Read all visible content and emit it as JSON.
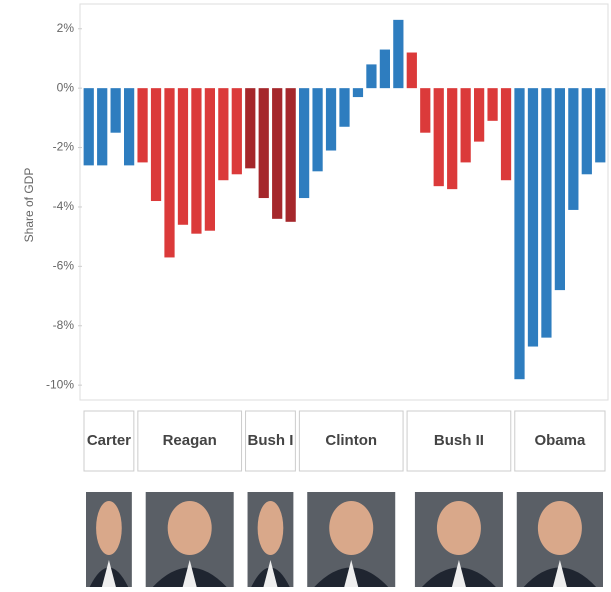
{
  "chart_data": {
    "type": "bar",
    "y_label": "Share of GDP",
    "categories": [
      null,
      null,
      null,
      null,
      null,
      null,
      null,
      null,
      null,
      null,
      null,
      null,
      null,
      null,
      null,
      null,
      null,
      null,
      null,
      null,
      null,
      null,
      null,
      null,
      null,
      null,
      null,
      null,
      null,
      null,
      null,
      null,
      null,
      null,
      null,
      null,
      null,
      null,
      null
    ],
    "series": [
      {
        "name": "Carter",
        "color": "#2e7dbf",
        "values": [
          -2.6,
          -2.6,
          -1.5,
          -2.6,
          null,
          null,
          null,
          null,
          null,
          null,
          null,
          null,
          null,
          null,
          null,
          null,
          null,
          null,
          null,
          null,
          null,
          null,
          null,
          null,
          null,
          null,
          null,
          null,
          null,
          null,
          null,
          null,
          null,
          null,
          null,
          null,
          null,
          null,
          null
        ]
      },
      {
        "name": "Reagan",
        "color": "#db3a3a",
        "values": [
          null,
          null,
          null,
          null,
          -2.5,
          -3.8,
          -5.7,
          -4.6,
          -4.9,
          -4.8,
          -3.1,
          -2.9,
          null,
          null,
          null,
          null,
          null,
          null,
          null,
          null,
          null,
          null,
          null,
          null,
          null,
          null,
          null,
          null,
          null,
          null,
          null,
          null,
          null,
          null,
          null,
          null,
          null,
          null,
          null
        ]
      },
      {
        "name": "Bush I",
        "color": "#a5272b",
        "values": [
          null,
          null,
          null,
          null,
          null,
          null,
          null,
          null,
          null,
          null,
          null,
          null,
          -2.7,
          -3.7,
          -4.4,
          -4.5,
          null,
          null,
          null,
          null,
          null,
          null,
          null,
          null,
          null,
          null,
          null,
          null,
          null,
          null,
          null,
          null,
          null,
          null,
          null,
          null,
          null,
          null,
          null
        ]
      },
      {
        "name": "Clinton",
        "color": "#2e7dbf",
        "values": [
          null,
          null,
          null,
          null,
          null,
          null,
          null,
          null,
          null,
          null,
          null,
          null,
          null,
          null,
          null,
          null,
          -3.7,
          -2.8,
          -2.1,
          -1.3,
          -0.3,
          0.8,
          1.3,
          2.3,
          null,
          null,
          null,
          null,
          null,
          null,
          null,
          null,
          null,
          null,
          null,
          null,
          null,
          null,
          null
        ]
      },
      {
        "name": "Bush II",
        "color": "#db3a3a",
        "values": [
          null,
          null,
          null,
          null,
          null,
          null,
          null,
          null,
          null,
          null,
          null,
          null,
          null,
          null,
          null,
          null,
          null,
          null,
          null,
          null,
          null,
          null,
          null,
          null,
          1.2,
          -1.5,
          -3.3,
          -3.4,
          -2.5,
          -1.8,
          -1.1,
          -3.1,
          null,
          null,
          null,
          null,
          null,
          null,
          null
        ]
      },
      {
        "name": "Obama",
        "color": "#2e7dbf",
        "values": [
          null,
          null,
          null,
          null,
          null,
          null,
          null,
          null,
          null,
          null,
          null,
          null,
          null,
          null,
          null,
          null,
          null,
          null,
          null,
          null,
          null,
          null,
          null,
          null,
          null,
          null,
          null,
          null,
          null,
          null,
          null,
          null,
          -9.8,
          -8.7,
          -8.4,
          -6.8,
          -4.1,
          -2.9,
          -2.5
        ]
      }
    ],
    "ylim": [
      -10.5,
      2.8
    ],
    "yticks": [
      {
        "value": 2,
        "label": "2%"
      },
      {
        "value": 0,
        "label": "0%"
      },
      {
        "value": -2,
        "label": "-2%"
      },
      {
        "value": -4,
        "label": "-4%"
      },
      {
        "value": -6,
        "label": "-6%"
      },
      {
        "value": -8,
        "label": "-8%"
      },
      {
        "value": -10,
        "label": "-10%"
      }
    ],
    "grid": false
  }
}
